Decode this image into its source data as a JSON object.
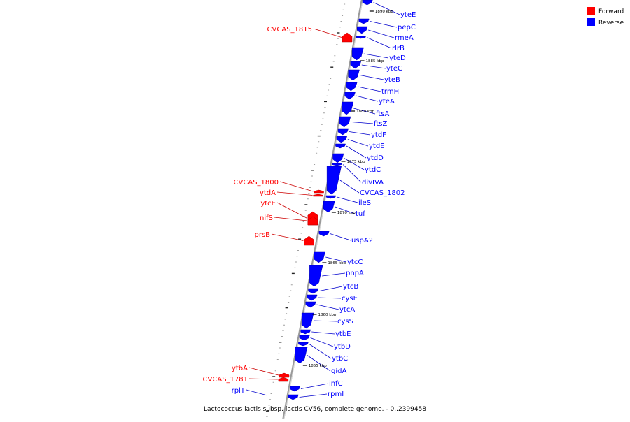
{
  "title": "Lactococcus lactis subsp. lactis CV56, complete genome. - 0..2399458",
  "legend": [
    {
      "label": "Forward",
      "color": "#ff0000"
    },
    {
      "label": "Reverse",
      "color": "#0000ff"
    }
  ],
  "colors": {
    "forward": "#ff0000",
    "reverse": "#0000ff",
    "backbone": "#808080",
    "leader_forward": "#cc0000",
    "leader_reverse": "#0000cc"
  },
  "ruler": [
    "1890 kbp",
    "1885 kbp",
    "1880 kbp",
    "1875 kbp",
    "1870 kbp",
    "1865 kbp",
    "1860 kbp",
    "1855 kbp"
  ],
  "reverse_genes": [
    "yteE",
    "pepC",
    "rmeA",
    "rlrB",
    "yteD",
    "yteC",
    "yteB",
    "trmH",
    "yteA",
    "ftsA",
    "ftsZ",
    "ytdF",
    "ytdE",
    "ytdD",
    "ytdC",
    "divIVA",
    "CVCAS_1802",
    "ileS",
    "tuf",
    "uspA2",
    "ytcC",
    "pnpA",
    "ytcB",
    "cysE",
    "ytcA",
    "cysS",
    "ytbE",
    "ytbD",
    "ytbC",
    "gidA",
    "infC",
    "rpmI"
  ],
  "forward_genes": [
    "CVCAS_1815",
    "CVCAS_1800",
    "ytdA",
    "ytcE",
    "nifS",
    "prsB",
    "ytbA",
    "CVCAS_1781"
  ],
  "left_reverse_genes": [
    "rplT"
  ]
}
